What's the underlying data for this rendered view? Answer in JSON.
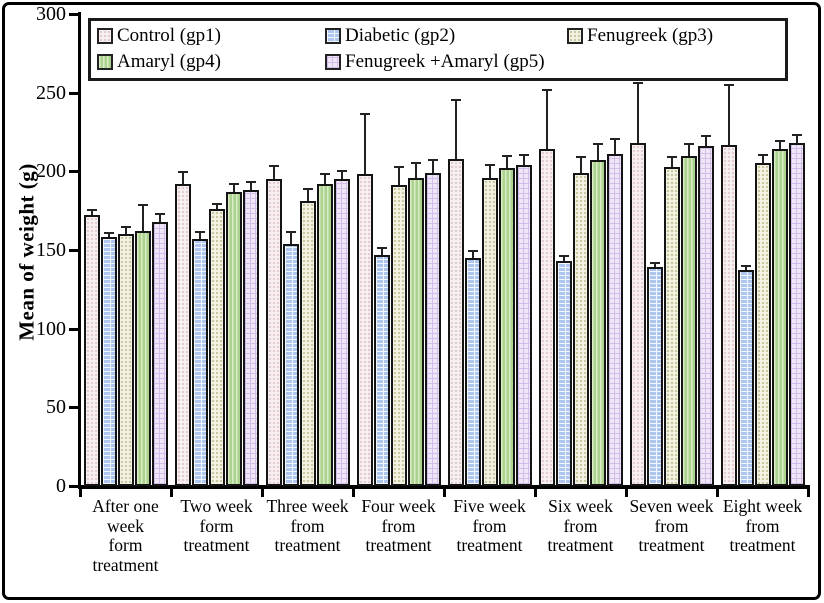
{
  "figure": {
    "background": "#ffffff",
    "border_color": "#000000",
    "axis_color": "#000000",
    "bar_border_color": "#141414"
  },
  "chart_data": {
    "type": "bar",
    "title": "",
    "xlabel": "",
    "ylabel": "Mean of weight (g)",
    "ylim": [
      0,
      300
    ],
    "yticks": [
      0,
      50,
      100,
      150,
      200,
      250,
      300
    ],
    "grid": false,
    "legend_position": "top inside framed box",
    "error_bars": "upper",
    "categories": [
      "After one week form treatment",
      "Two week form treatment",
      "Three week from treatment",
      "Four week from treatment",
      "Five week from treatment",
      "Six week from treatment",
      "Seven week from treatment",
      "Eight week from treatment"
    ],
    "category_lines": [
      [
        "After one",
        "week",
        "form",
        "treatment"
      ],
      [
        "Two week",
        "form",
        "treatment"
      ],
      [
        "Three week",
        "from",
        "treatment"
      ],
      [
        "Four week",
        "from",
        "treatment"
      ],
      [
        "Five week",
        "from",
        "treatment"
      ],
      [
        "Six week",
        "from",
        "treatment"
      ],
      [
        "Seven week",
        "from",
        "treatment"
      ],
      [
        "Eight week",
        "from",
        "treatment"
      ]
    ],
    "series": [
      {
        "name": "Control (gp1)",
        "slug": "control-gp1",
        "pattern": "dots",
        "fill": "#f8f1f1",
        "pattern_color": "#e3cbd1",
        "values": [
          172,
          192,
          195,
          198,
          208,
          214,
          218,
          217
        ],
        "errors": [
          4,
          8,
          9,
          39,
          38,
          38,
          39,
          39
        ]
      },
      {
        "name": "Diabetic (gp2)",
        "slug": "diabetic-gp2",
        "pattern": "bricks",
        "fill": "#aec6ee",
        "pattern_color": "#f2f6ff",
        "values": [
          158,
          157,
          154,
          147,
          145,
          143,
          139,
          137
        ],
        "errors": [
          3,
          5,
          8,
          5,
          5,
          4,
          3,
          3
        ]
      },
      {
        "name": "Fenugreek (gp3)",
        "slug": "fenugreek-gp3",
        "pattern": "dots",
        "fill": "#f5f4e4",
        "pattern_color": "#c7c7a2",
        "values": [
          160,
          176,
          181,
          191,
          196,
          199,
          203,
          205
        ],
        "errors": [
          5,
          4,
          8,
          12,
          9,
          11,
          7,
          6
        ]
      },
      {
        "name": "Amaryl (gp4)",
        "slug": "amaryl-gp4",
        "pattern": "vstripes",
        "fill": "#abd28f",
        "pattern_color": "#d9ecc6",
        "values": [
          162,
          187,
          192,
          196,
          202,
          207,
          210,
          214
        ],
        "errors": [
          17,
          6,
          7,
          10,
          8,
          11,
          8,
          6
        ]
      },
      {
        "name": "Fenugreek +Amaryl (gp5)",
        "slug": "fenugreek-amaryl-gp5",
        "pattern": "grid",
        "fill": "#efe7f8",
        "pattern_color": "#d2bee8",
        "values": [
          168,
          188,
          195,
          199,
          204,
          211,
          216,
          218
        ],
        "errors": [
          6,
          6,
          6,
          9,
          7,
          10,
          7,
          6
        ]
      }
    ]
  }
}
